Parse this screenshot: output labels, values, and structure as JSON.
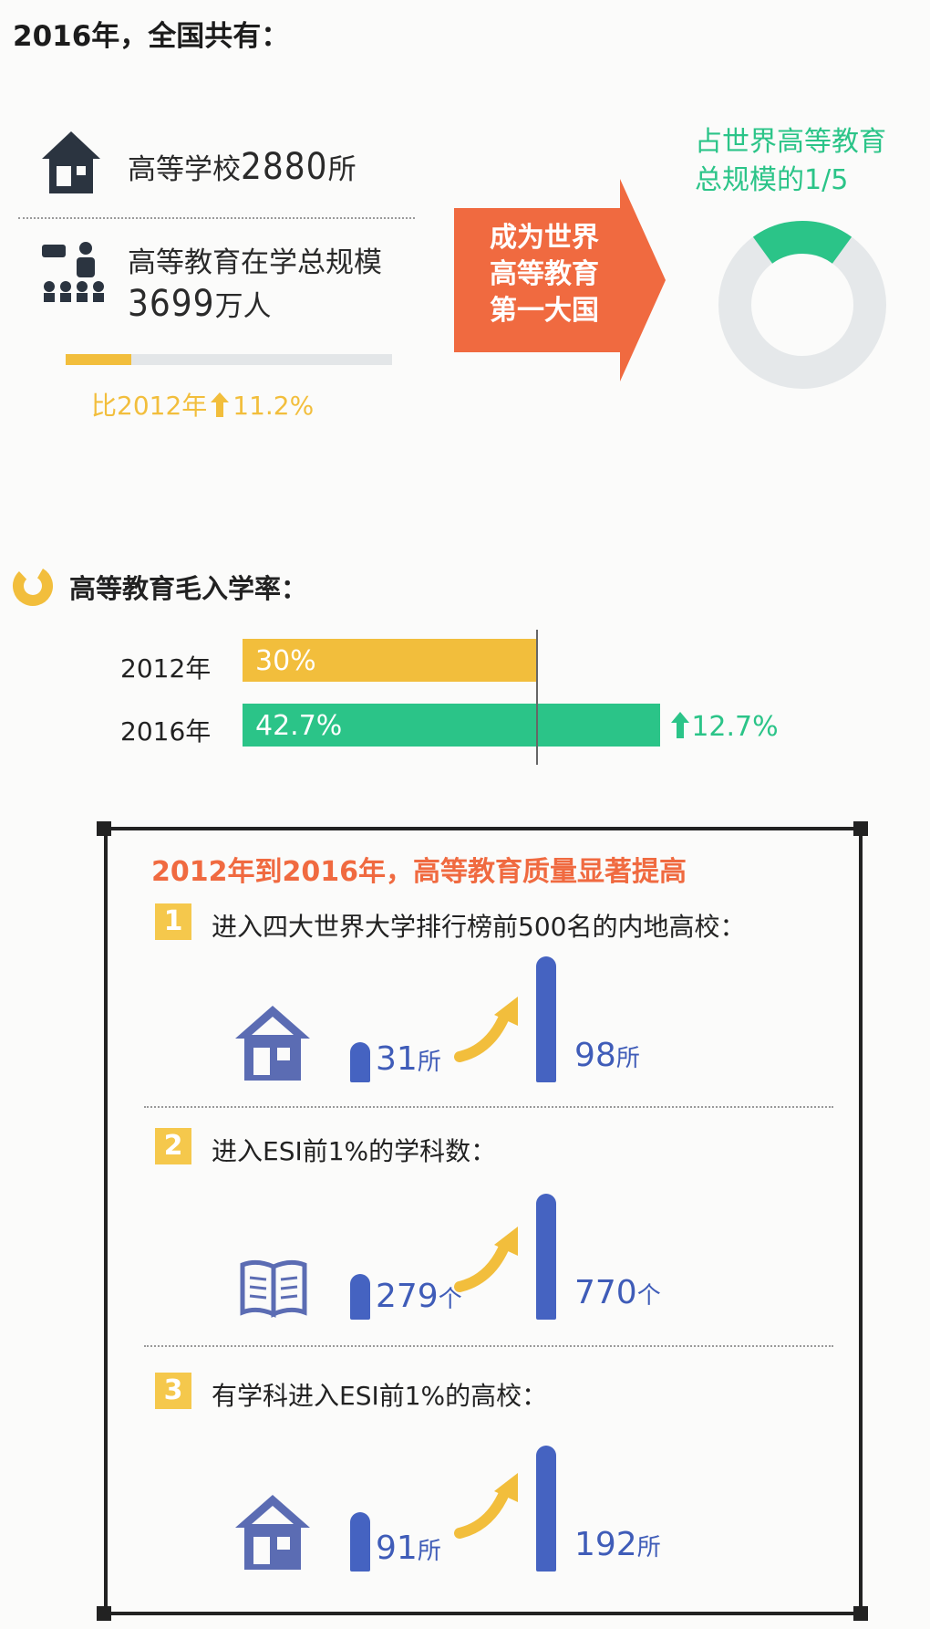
{
  "header": {
    "title": "2016年，全国共有："
  },
  "stats": {
    "schools_label": "高等学校",
    "schools_value": "2880",
    "schools_unit": "所",
    "students_label": "高等教育在学总规模",
    "students_value": "3699",
    "students_unit": "万人",
    "growth_text": "比2012年",
    "growth_value": "11.2%",
    "growth_fraction": 0.2
  },
  "arrow": {
    "lines": [
      "成为世界",
      "高等教育",
      "第一大国"
    ]
  },
  "world_share": {
    "line1": "占世界高等教育",
    "line2": "总规模的1/5",
    "share": 0.2,
    "colors": {
      "share": "#2bc488",
      "rest": "#e5e8ea"
    }
  },
  "enrollment": {
    "section_title": "高等教育毛入学率：",
    "increase": "12.7%"
  },
  "quality": {
    "title": "2012年到2016年，高等教育质量显著提高",
    "items": [
      {
        "num": "1",
        "text": "进入四大世界大学排行榜前500名的内地高校：",
        "icon": "house-icon",
        "before": "31",
        "before_unit": "所",
        "after": "98",
        "after_unit": "所"
      },
      {
        "num": "2",
        "text": "进入ESI前1%的学科数：",
        "icon": "book-icon",
        "before": "279",
        "before_unit": "个",
        "after": "770",
        "after_unit": "个"
      },
      {
        "num": "3",
        "text": "有学科进入ESI前1%的高校：",
        "icon": "house-icon",
        "before": "91",
        "before_unit": "所",
        "after": "192",
        "after_unit": "所"
      }
    ]
  },
  "colors": {
    "orange": "#f06a40",
    "green": "#2bc488",
    "yellow": "#f2be3c",
    "blue": "#4563c1"
  },
  "chart_data": [
    {
      "type": "bar",
      "title": "高等教育毛入学率：",
      "categories": [
        "2012年",
        "2016年"
      ],
      "values": [
        30,
        42.7
      ],
      "value_labels": [
        "30%",
        "42.7%"
      ],
      "colors": [
        "#f2be3c",
        "#2bc488"
      ]
    },
    {
      "type": "bar",
      "title": "进入四大世界大学排行榜前500名的内地高校：",
      "categories": [
        "2012",
        "2016"
      ],
      "values": [
        31,
        98
      ]
    },
    {
      "type": "bar",
      "title": "进入ESI前1%的学科数：",
      "categories": [
        "2012",
        "2016"
      ],
      "values": [
        279,
        770
      ]
    },
    {
      "type": "bar",
      "title": "有学科进入ESI前1%的高校：",
      "categories": [
        "2012",
        "2016"
      ],
      "values": [
        91,
        192
      ]
    }
  ]
}
